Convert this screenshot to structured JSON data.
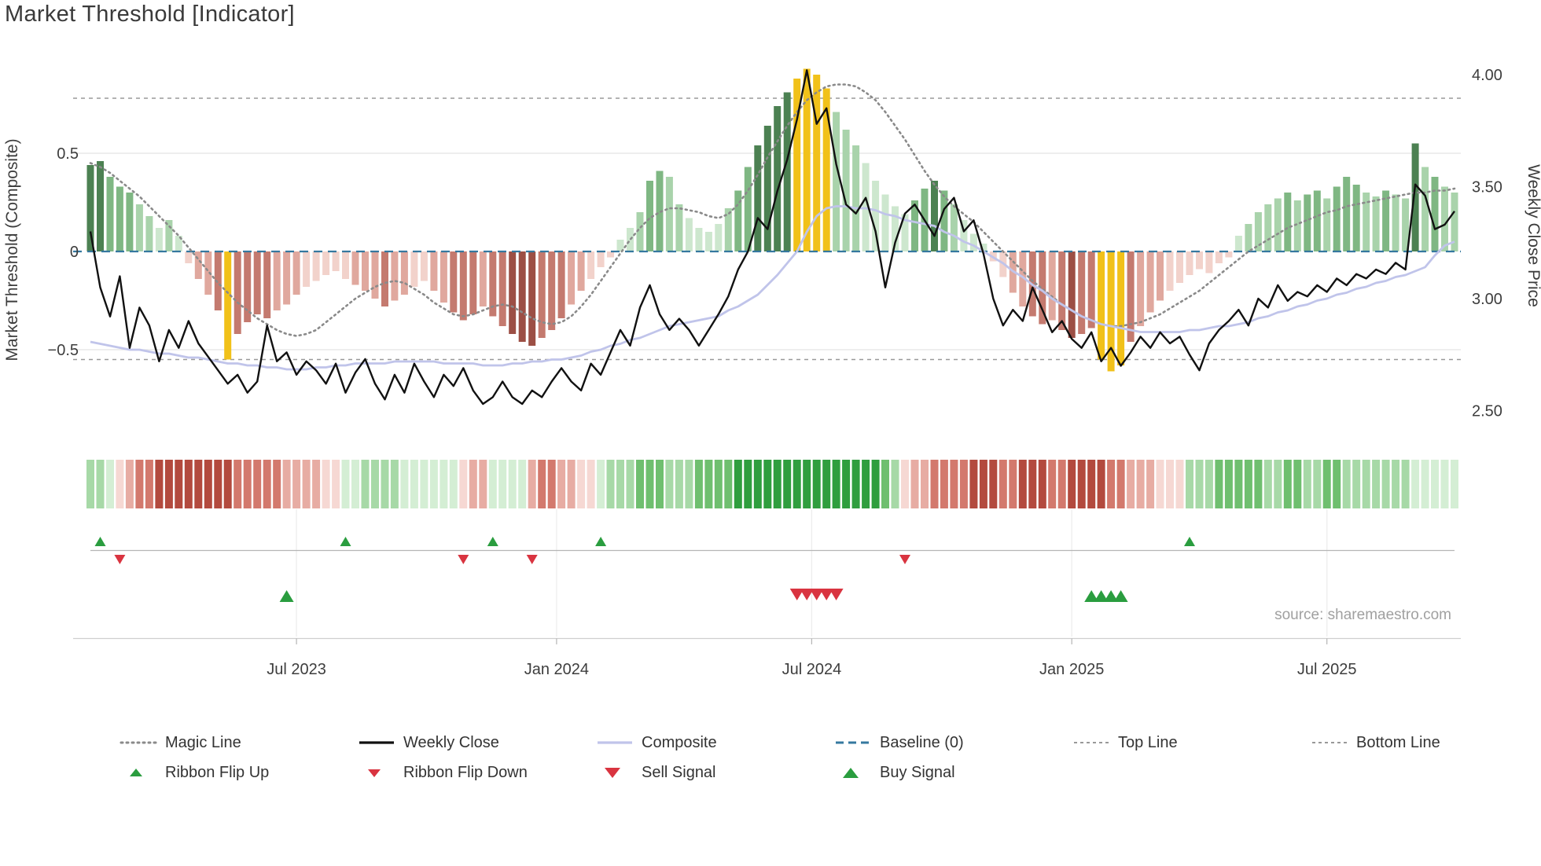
{
  "title": "Market Threshold [Indicator]",
  "source": "source: sharemaestro.com",
  "colors": {
    "weekly_close": "#111111",
    "composite_line": "#c0c4ea",
    "magic_line": "#8a8a8a",
    "baseline": "#35789f",
    "top_bottom": "#999999",
    "grid": "#e4e4e4",
    "buy": "#2a9d3f",
    "sell": "#d93440",
    "histogram": {
      "g1": "#cde7ce",
      "g2": "#a9d3ab",
      "g3": "#7fb783",
      "g4": "#4c8152",
      "r1": "#f2d2cb",
      "r2": "#e0a89e",
      "r3": "#c47a6f",
      "r4": "#9c4f45",
      "y": "#f1c119"
    },
    "ribbon": {
      "G1": "#d4eed4",
      "G2": "#a7d9a7",
      "G3": "#6fbf6f",
      "G4": "#2f9e3e",
      "R1": "#f6d8d3",
      "R2": "#e7aca3",
      "R3": "#d3796d",
      "R4": "#b34a3e"
    }
  },
  "chart_data": {
    "type": "line",
    "title": "Market Threshold [Indicator]",
    "x": {
      "n_points": 140,
      "unit": "week",
      "ticks": [
        {
          "week": 21,
          "label": "Jul 2023"
        },
        {
          "week": 47.5,
          "label": "Jan 2024"
        },
        {
          "week": 73.5,
          "label": "Jul 2024"
        },
        {
          "week": 100,
          "label": "Jan 2025"
        },
        {
          "week": 126,
          "label": "Jul 2025"
        }
      ]
    },
    "left_axis": {
      "label": "Market Threshold (Composite)",
      "range": [
        -0.98,
        0.98
      ],
      "ticks": [
        {
          "v": 0.5,
          "label": "0.5"
        },
        {
          "v": 0,
          "label": "0"
        },
        {
          "v": -0.5,
          "label": "−0.5"
        }
      ]
    },
    "right_axis": {
      "label": "Weekly Close Price",
      "range": [
        2.37,
        4.07
      ],
      "ticks": [
        {
          "v": 4.0,
          "label": "4.00"
        },
        {
          "v": 3.5,
          "label": "3.50"
        },
        {
          "v": 3.0,
          "label": "3.00"
        },
        {
          "v": 2.5,
          "label": "2.50"
        }
      ]
    },
    "reference_lines": {
      "baseline": 0,
      "top_line": 0.78,
      "bottom_line": -0.55
    },
    "series": [
      {
        "name": "Composite Histogram",
        "kind": "bar",
        "axis": "left",
        "values": [
          0.44,
          0.46,
          0.38,
          0.33,
          0.3,
          0.24,
          0.18,
          0.12,
          0.16,
          0.08,
          -0.06,
          -0.14,
          -0.22,
          -0.3,
          -0.55,
          -0.42,
          -0.36,
          -0.32,
          -0.34,
          -0.3,
          -0.27,
          -0.22,
          -0.18,
          -0.15,
          -0.12,
          -0.1,
          -0.14,
          -0.17,
          -0.2,
          -0.24,
          -0.28,
          -0.25,
          -0.22,
          -0.18,
          -0.15,
          -0.2,
          -0.26,
          -0.31,
          -0.35,
          -0.32,
          -0.28,
          -0.33,
          -0.38,
          -0.42,
          -0.46,
          -0.48,
          -0.44,
          -0.4,
          -0.34,
          -0.27,
          -0.2,
          -0.14,
          -0.08,
          -0.03,
          0.06,
          0.12,
          0.2,
          0.36,
          0.41,
          0.38,
          0.24,
          0.17,
          0.12,
          0.1,
          0.14,
          0.22,
          0.31,
          0.43,
          0.54,
          0.64,
          0.74,
          0.81,
          0.88,
          0.93,
          0.9,
          0.83,
          0.71,
          0.62,
          0.54,
          0.45,
          0.36,
          0.29,
          0.23,
          0.19,
          0.26,
          0.32,
          0.36,
          0.31,
          0.24,
          0.16,
          0.09,
          0.04,
          -0.05,
          -0.13,
          -0.21,
          -0.28,
          -0.33,
          -0.37,
          -0.35,
          -0.4,
          -0.44,
          -0.42,
          -0.39,
          -0.55,
          -0.61,
          -0.58,
          -0.46,
          -0.38,
          -0.31,
          -0.25,
          -0.2,
          -0.16,
          -0.12,
          -0.09,
          -0.11,
          -0.06,
          -0.03,
          0.08,
          0.14,
          0.2,
          0.24,
          0.27,
          0.3,
          0.26,
          0.29,
          0.31,
          0.27,
          0.33,
          0.38,
          0.34,
          0.3,
          0.28,
          0.31,
          0.29,
          0.27,
          0.55,
          0.43,
          0.38,
          0.33,
          0.3
        ],
        "tones": [
          "g4",
          "g4",
          "g3",
          "g3",
          "g3",
          "g2",
          "g2",
          "g1",
          "g2",
          "g1",
          "r1",
          "r2",
          "r2",
          "r3",
          "y",
          "r3",
          "r3",
          "r3",
          "r3",
          "r2",
          "r2",
          "r2",
          "r1",
          "r1",
          "r1",
          "r1",
          "r1",
          "r2",
          "r2",
          "r2",
          "r3",
          "r2",
          "r2",
          "r1",
          "r1",
          "r2",
          "r2",
          "r3",
          "r3",
          "r3",
          "r2",
          "r3",
          "r3",
          "r4",
          "r4",
          "r4",
          "r3",
          "r3",
          "r3",
          "r2",
          "r2",
          "r1",
          "r1",
          "r1",
          "g1",
          "g1",
          "g2",
          "g3",
          "g3",
          "g2",
          "g2",
          "g1",
          "g1",
          "g1",
          "g1",
          "g2",
          "g3",
          "g3",
          "g4",
          "g4",
          "g4",
          "g4",
          "y",
          "y",
          "y",
          "y",
          "g2",
          "g2",
          "g2",
          "g1",
          "g1",
          "g1",
          "g1",
          "g1",
          "g3",
          "g3",
          "g4",
          "g3",
          "g2",
          "g1",
          "g1",
          "g1",
          "r1",
          "r1",
          "r2",
          "r2",
          "r3",
          "r3",
          "r2",
          "r3",
          "r4",
          "r3",
          "r3",
          "y",
          "y",
          "y",
          "r3",
          "r2",
          "r2",
          "r2",
          "r1",
          "r1",
          "r1",
          "r1",
          "r1",
          "r1",
          "r1",
          "g1",
          "g2",
          "g2",
          "g2",
          "g2",
          "g3",
          "g2",
          "g3",
          "g3",
          "g2",
          "g3",
          "g3",
          "g3",
          "g2",
          "g2",
          "g3",
          "g2",
          "g2",
          "g4",
          "g2",
          "g3",
          "g2",
          "g2"
        ]
      },
      {
        "name": "Weekly Close",
        "kind": "line",
        "axis": "right",
        "values": [
          3.3,
          3.05,
          2.92,
          3.1,
          2.78,
          2.96,
          2.88,
          2.72,
          2.86,
          2.78,
          2.9,
          2.8,
          2.74,
          2.68,
          2.62,
          2.66,
          2.58,
          2.63,
          2.88,
          2.72,
          2.76,
          2.66,
          2.72,
          2.68,
          2.62,
          2.71,
          2.58,
          2.67,
          2.73,
          2.62,
          2.55,
          2.66,
          2.58,
          2.71,
          2.63,
          2.56,
          2.66,
          2.61,
          2.69,
          2.59,
          2.53,
          2.56,
          2.63,
          2.56,
          2.53,
          2.59,
          2.56,
          2.63,
          2.69,
          2.63,
          2.59,
          2.71,
          2.66,
          2.76,
          2.86,
          2.79,
          2.96,
          3.06,
          2.93,
          2.86,
          2.91,
          2.86,
          2.79,
          2.86,
          2.93,
          3.01,
          3.13,
          3.21,
          3.36,
          3.31,
          3.48,
          3.62,
          3.8,
          4.02,
          3.78,
          3.85,
          3.6,
          3.42,
          3.38,
          3.45,
          3.3,
          3.05,
          3.25,
          3.38,
          3.42,
          3.35,
          3.28,
          3.4,
          3.45,
          3.3,
          3.35,
          3.2,
          3.0,
          2.88,
          2.95,
          2.9,
          3.05,
          2.95,
          2.85,
          2.9,
          2.82,
          2.78,
          2.85,
          2.72,
          2.78,
          2.7,
          2.76,
          2.83,
          2.78,
          2.85,
          2.8,
          2.83,
          2.75,
          2.68,
          2.8,
          2.86,
          2.9,
          2.95,
          2.88,
          3.0,
          2.96,
          3.06,
          2.99,
          3.03,
          3.01,
          3.06,
          3.03,
          3.09,
          3.06,
          3.11,
          3.09,
          3.13,
          3.11,
          3.16,
          3.13,
          3.51,
          3.46,
          3.31,
          3.33,
          3.39
        ]
      },
      {
        "name": "Composite",
        "kind": "line",
        "axis": "left",
        "values": [
          -0.46,
          -0.47,
          -0.48,
          -0.49,
          -0.5,
          -0.5,
          -0.51,
          -0.52,
          -0.52,
          -0.53,
          -0.54,
          -0.54,
          -0.55,
          -0.56,
          -0.57,
          -0.57,
          -0.58,
          -0.58,
          -0.59,
          -0.59,
          -0.6,
          -0.6,
          -0.6,
          -0.59,
          -0.59,
          -0.58,
          -0.58,
          -0.57,
          -0.57,
          -0.57,
          -0.57,
          -0.56,
          -0.56,
          -0.56,
          -0.56,
          -0.56,
          -0.57,
          -0.57,
          -0.57,
          -0.57,
          -0.58,
          -0.58,
          -0.58,
          -0.57,
          -0.57,
          -0.56,
          -0.56,
          -0.55,
          -0.55,
          -0.54,
          -0.53,
          -0.51,
          -0.5,
          -0.48,
          -0.47,
          -0.45,
          -0.44,
          -0.42,
          -0.4,
          -0.38,
          -0.37,
          -0.36,
          -0.35,
          -0.34,
          -0.33,
          -0.3,
          -0.28,
          -0.25,
          -0.22,
          -0.17,
          -0.12,
          -0.06,
          0.0,
          0.1,
          0.18,
          0.22,
          0.23,
          0.23,
          0.22,
          0.22,
          0.21,
          0.19,
          0.18,
          0.16,
          0.15,
          0.14,
          0.13,
          0.1,
          0.08,
          0.05,
          0.03,
          0.0,
          -0.03,
          -0.06,
          -0.1,
          -0.13,
          -0.17,
          -0.2,
          -0.24,
          -0.27,
          -0.3,
          -0.33,
          -0.35,
          -0.37,
          -0.38,
          -0.39,
          -0.4,
          -0.41,
          -0.41,
          -0.41,
          -0.41,
          -0.41,
          -0.4,
          -0.4,
          -0.39,
          -0.38,
          -0.38,
          -0.37,
          -0.36,
          -0.34,
          -0.33,
          -0.31,
          -0.3,
          -0.28,
          -0.27,
          -0.25,
          -0.24,
          -0.22,
          -0.21,
          -0.19,
          -0.18,
          -0.16,
          -0.15,
          -0.13,
          -0.12,
          -0.1,
          -0.08,
          -0.02,
          0.03,
          0.05
        ]
      },
      {
        "name": "Magic Line",
        "kind": "line",
        "axis": "left",
        "values": [
          0.45,
          0.43,
          0.4,
          0.36,
          0.32,
          0.28,
          0.23,
          0.18,
          0.13,
          0.08,
          0.02,
          -0.04,
          -0.1,
          -0.16,
          -0.21,
          -0.26,
          -0.3,
          -0.34,
          -0.37,
          -0.4,
          -0.42,
          -0.43,
          -0.42,
          -0.4,
          -0.36,
          -0.32,
          -0.28,
          -0.24,
          -0.21,
          -0.18,
          -0.16,
          -0.15,
          -0.16,
          -0.19,
          -0.22,
          -0.26,
          -0.29,
          -0.32,
          -0.33,
          -0.32,
          -0.3,
          -0.28,
          -0.27,
          -0.28,
          -0.31,
          -0.34,
          -0.36,
          -0.37,
          -0.36,
          -0.33,
          -0.28,
          -0.22,
          -0.15,
          -0.08,
          -0.01,
          0.06,
          0.12,
          0.17,
          0.2,
          0.22,
          0.22,
          0.21,
          0.2,
          0.18,
          0.17,
          0.19,
          0.24,
          0.31,
          0.39,
          0.48,
          0.56,
          0.64,
          0.71,
          0.77,
          0.81,
          0.84,
          0.85,
          0.85,
          0.84,
          0.81,
          0.77,
          0.71,
          0.64,
          0.57,
          0.49,
          0.41,
          0.34,
          0.28,
          0.23,
          0.19,
          0.15,
          0.1,
          0.05,
          0.0,
          -0.05,
          -0.1,
          -0.15,
          -0.19,
          -0.23,
          -0.27,
          -0.3,
          -0.33,
          -0.35,
          -0.37,
          -0.38,
          -0.38,
          -0.37,
          -0.36,
          -0.34,
          -0.32,
          -0.29,
          -0.26,
          -0.23,
          -0.2,
          -0.16,
          -0.12,
          -0.08,
          -0.04,
          0.0,
          0.03,
          0.06,
          0.09,
          0.12,
          0.14,
          0.16,
          0.18,
          0.2,
          0.21,
          0.23,
          0.24,
          0.25,
          0.26,
          0.27,
          0.28,
          0.29,
          0.3,
          0.3,
          0.31,
          0.31,
          0.32
        ]
      }
    ],
    "ribbon": [
      "G2",
      "G2",
      "G1",
      "R1",
      "R2",
      "R3",
      "R3",
      "R4",
      "R4",
      "R4",
      "R4",
      "R4",
      "R4",
      "R4",
      "R4",
      "R3",
      "R3",
      "R3",
      "R3",
      "R3",
      "R2",
      "R2",
      "R2",
      "R2",
      "R1",
      "R1",
      "G1",
      "G1",
      "G2",
      "G2",
      "G2",
      "G2",
      "G1",
      "G1",
      "G1",
      "G1",
      "G1",
      "G1",
      "R1",
      "R2",
      "R2",
      "G1",
      "G1",
      "G1",
      "G1",
      "R2",
      "R3",
      "R3",
      "R2",
      "R2",
      "R1",
      "R1",
      "G1",
      "G2",
      "G2",
      "G2",
      "G3",
      "G3",
      "G3",
      "G2",
      "G2",
      "G2",
      "G3",
      "G3",
      "G3",
      "G3",
      "G4",
      "G4",
      "G4",
      "G4",
      "G4",
      "G4",
      "G4",
      "G4",
      "G4",
      "G4",
      "G4",
      "G4",
      "G4",
      "G4",
      "G4",
      "G3",
      "G2",
      "R1",
      "R2",
      "R2",
      "R3",
      "R3",
      "R3",
      "R3",
      "R4",
      "R4",
      "R4",
      "R3",
      "R3",
      "R4",
      "R4",
      "R4",
      "R3",
      "R3",
      "R4",
      "R4",
      "R4",
      "R4",
      "R3",
      "R3",
      "R2",
      "R2",
      "R2",
      "R1",
      "R1",
      "R1",
      "G2",
      "G2",
      "G2",
      "G3",
      "G3",
      "G3",
      "G3",
      "G3",
      "G2",
      "G2",
      "G3",
      "G3",
      "G2",
      "G2",
      "G3",
      "G3",
      "G2",
      "G2",
      "G2",
      "G2",
      "G2",
      "G2",
      "G2",
      "G1",
      "G1",
      "G1",
      "G1",
      "G1"
    ],
    "signals": {
      "ribbon_flip_up_weeks": [
        1,
        26,
        41,
        52,
        112
      ],
      "ribbon_flip_down_weeks": [
        3,
        38,
        45,
        83
      ],
      "sell_signal_weeks": [
        72,
        73,
        74,
        75,
        76
      ],
      "buy_signal_weeks": [
        20,
        102,
        103,
        104,
        105
      ]
    }
  },
  "legend": {
    "rows": [
      [
        {
          "label": "Magic Line",
          "swatch": "dotted-line",
          "color": "#8a8a8a"
        },
        {
          "label": "Weekly Close",
          "swatch": "solid-line",
          "color": "#111111"
        },
        {
          "label": "Composite",
          "swatch": "solid-line",
          "color": "#c0c4ea"
        },
        {
          "label": "Baseline (0)",
          "swatch": "dashed-line",
          "color": "#35789f"
        },
        {
          "label": "Top Line",
          "swatch": "dashed-line-thin",
          "color": "#999999"
        },
        {
          "label": "Bottom Line",
          "swatch": "dashed-line-thin",
          "color": "#999999"
        }
      ],
      [
        {
          "label": "Ribbon Flip Up",
          "swatch": "triangle-up-small",
          "color": "#2a9d3f"
        },
        {
          "label": "Ribbon Flip Down",
          "swatch": "triangle-down-small",
          "color": "#d93440"
        },
        {
          "label": "Sell Signal",
          "swatch": "triangle-down",
          "color": "#d93440"
        },
        {
          "label": "Buy Signal",
          "swatch": "triangle-up",
          "color": "#2a9d3f"
        }
      ]
    ]
  }
}
